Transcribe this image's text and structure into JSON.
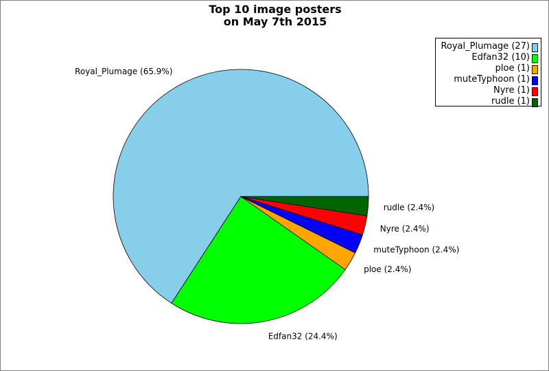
{
  "chart_data": {
    "type": "pie",
    "title_lines": [
      "Top 10 image posters",
      "on May 7th 2015"
    ],
    "slices": [
      {
        "name": "Royal_Plumage",
        "value": 27,
        "percent": "65.9%",
        "legend_label": "Royal_Plumage (27)",
        "slice_label": "Royal_Plumage (65.9%)",
        "color": "#87ceeb"
      },
      {
        "name": "Edfan32",
        "value": 10,
        "percent": "24.4%",
        "legend_label": "Edfan32 (10)",
        "slice_label": "Edfan32 (24.4%)",
        "color": "#00ff00"
      },
      {
        "name": "ploe",
        "value": 1,
        "percent": "2.4%",
        "legend_label": "ploe (1)",
        "slice_label": "ploe (2.4%)",
        "color": "#ffa500"
      },
      {
        "name": "muteTyphoon",
        "value": 1,
        "percent": "2.4%",
        "legend_label": "muteTyphoon (1)",
        "slice_label": "muteTyphoon (2.4%)",
        "color": "#0000ff"
      },
      {
        "name": "Nyre",
        "value": 1,
        "percent": "2.4%",
        "legend_label": "Nyre (1)",
        "slice_label": "Nyre (2.4%)",
        "color": "#ff0000"
      },
      {
        "name": "rudle",
        "value": 1,
        "percent": "2.4%",
        "legend_label": "rudle (1)",
        "slice_label": "rudle (2.4%)",
        "color": "#006400"
      }
    ],
    "legend_position": "top-right"
  }
}
